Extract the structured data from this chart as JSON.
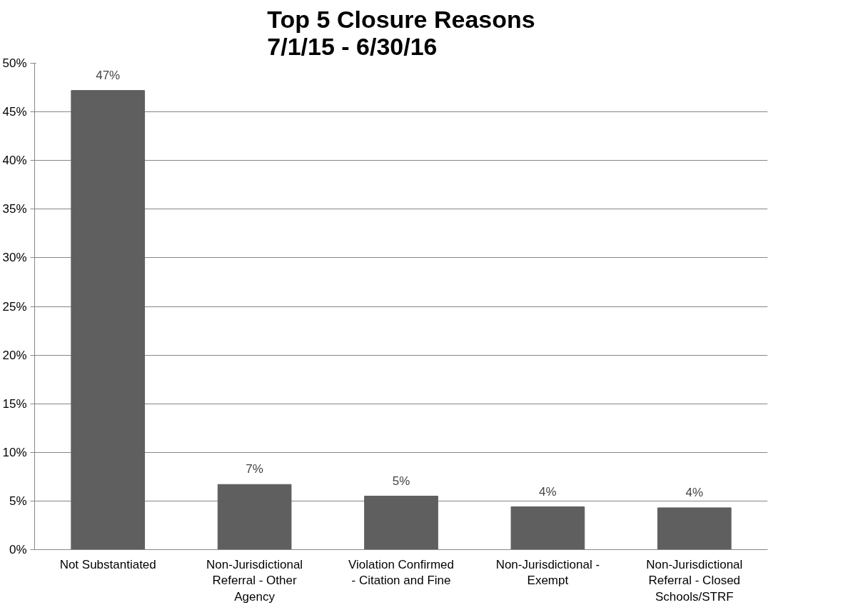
{
  "chart_data": {
    "type": "bar",
    "title": "Top 5 Closure Reasons\n7/1/15 - 6/30/16",
    "categories": [
      "Not Substantiated",
      "Non-Jurisdictional Referral - Other Agency",
      "Violation Confirmed - Citation and Fine",
      "Non-Jurisdictional - Exempt",
      "Non-Jurisdictional Referral - Closed Schools/STRF"
    ],
    "values": [
      47.2,
      6.7,
      5.5,
      4.4,
      4.3
    ],
    "value_labels": [
      "47%",
      "7%",
      "5%",
      "4%",
      "4%"
    ],
    "color": "#5f5f5f",
    "ylim": [
      0,
      50
    ],
    "yticks": [
      {
        "value": 0,
        "label": "0%"
      },
      {
        "value": 5,
        "label": "5%"
      },
      {
        "value": 10,
        "label": "10%"
      },
      {
        "value": 15,
        "label": "15%"
      },
      {
        "value": 20,
        "label": "20%"
      },
      {
        "value": 25,
        "label": "25%"
      },
      {
        "value": 30,
        "label": "30%"
      },
      {
        "value": 35,
        "label": "35%"
      },
      {
        "value": 40,
        "label": "40%"
      },
      {
        "value": 45,
        "label": "45%"
      },
      {
        "value": 50,
        "label": "50%"
      }
    ],
    "grid": "y"
  }
}
